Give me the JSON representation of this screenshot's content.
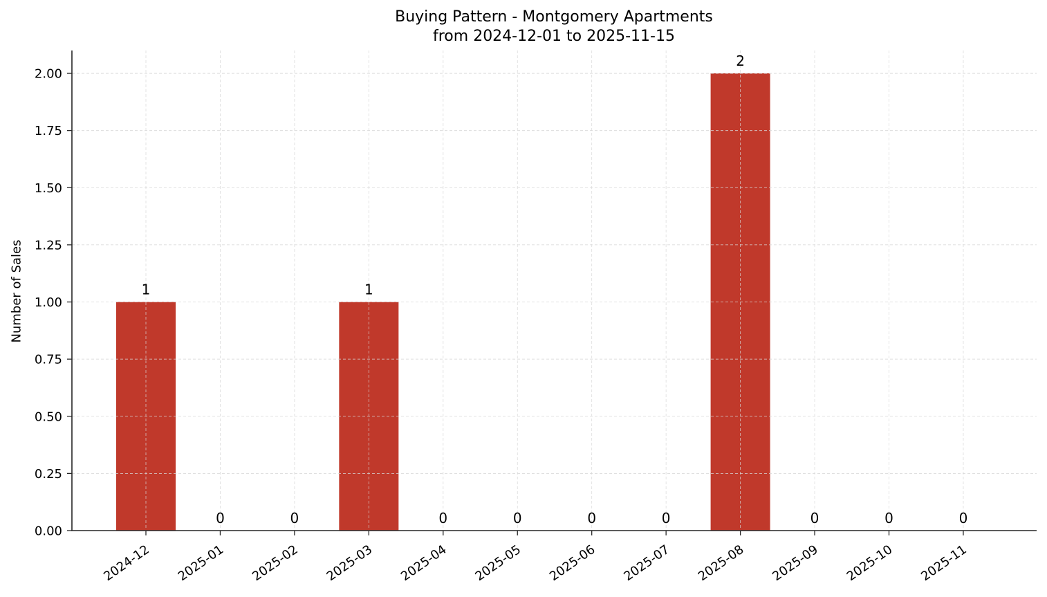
{
  "chart_data": {
    "type": "bar",
    "title": "Buying Pattern - Montgomery Apartments",
    "subtitle": "from 2024-12-01 to 2025-11-15",
    "xlabel": "",
    "ylabel": "Number of Sales",
    "categories": [
      "2024-12",
      "2025-01",
      "2025-02",
      "2025-03",
      "2025-04",
      "2025-05",
      "2025-06",
      "2025-07",
      "2025-08",
      "2025-09",
      "2025-10",
      "2025-11"
    ],
    "values": [
      1,
      0,
      0,
      1,
      0,
      0,
      0,
      0,
      2,
      0,
      0,
      0
    ],
    "data_labels": [
      "1",
      "0",
      "0",
      "1",
      "0",
      "0",
      "0",
      "0",
      "2",
      "0",
      "0",
      "0"
    ],
    "ylim": [
      0,
      2.1
    ],
    "yticks": [
      0.0,
      0.25,
      0.5,
      0.75,
      1.0,
      1.25,
      1.5,
      1.75,
      2.0
    ],
    "ytick_labels": [
      "0.00",
      "0.25",
      "0.50",
      "0.75",
      "1.00",
      "1.25",
      "1.50",
      "1.75",
      "2.00"
    ],
    "grid": true,
    "legend": null,
    "bar_color": "#c0392b",
    "grid_color": "#d6d6d6",
    "axis_color": "#262626"
  }
}
